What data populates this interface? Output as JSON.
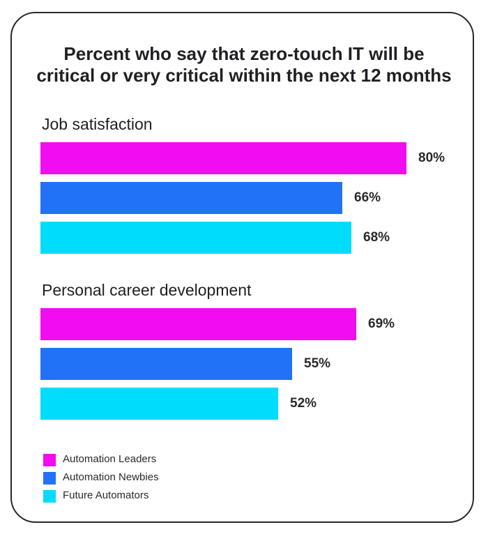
{
  "title_line1": "Percent who say that zero-touch IT will be",
  "title_line2": "critical or very critical within the next 12 months",
  "chart_data": {
    "type": "bar",
    "orientation": "horizontal",
    "title": "Percent who say that zero-touch IT will be critical or very critical within the next 12 months",
    "categories": [
      "Job satisfaction",
      "Personal career development"
    ],
    "series": [
      {
        "name": "Automation Leaders",
        "color": "#f20cf2",
        "values": [
          80,
          69
        ],
        "labels": [
          "80%",
          "69%"
        ]
      },
      {
        "name": "Automation Newbies",
        "color": "#2272f8",
        "values": [
          66,
          55
        ],
        "labels": [
          "66%",
          "55%"
        ]
      },
      {
        "name": "Future Automators",
        "color": "#00dcfc",
        "values": [
          68,
          52
        ],
        "labels": [
          "68%",
          "52%"
        ]
      }
    ],
    "legend_position": "bottom-left",
    "grid": false
  }
}
